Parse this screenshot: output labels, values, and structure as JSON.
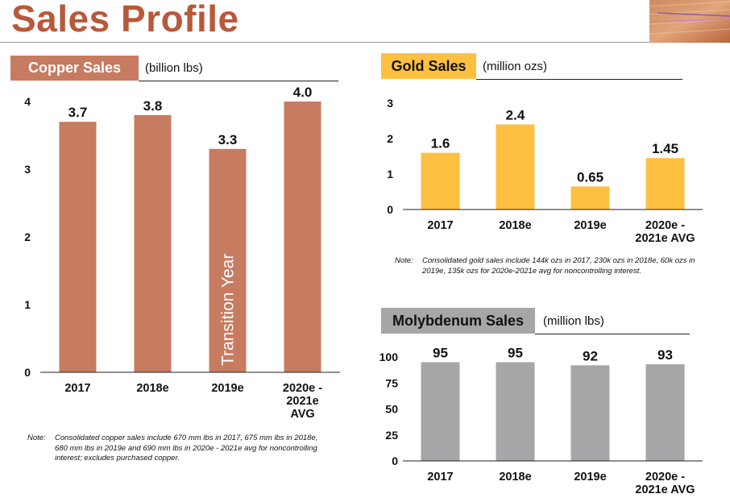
{
  "page": {
    "title": "Sales Profile"
  },
  "colors": {
    "copper": "#c77b60",
    "gold": "#fec040",
    "moly": "#a6a6a8",
    "title": "#b8593a"
  },
  "copper": {
    "header": "Copper Sales",
    "unit": "(billion lbs)",
    "note_label": "Note:",
    "note_text": "Consolidated copper sales include 670 mm lbs in 2017, 675 mm lbs in 2018e, 680 mm lbs in 2019e and 690 mm lbs in 2020e - 2021e avg for noncontrolling interest; excludes purchased copper."
  },
  "gold": {
    "header": "Gold Sales",
    "unit": "(million ozs)",
    "note_label": "Note:",
    "note_text": "Consolidated gold sales include 144k ozs in 2017, 230k ozs in 2018e, 60k ozs in 2019e, 135k ozs for 2020e-2021e avg for noncontrolling interest."
  },
  "moly": {
    "header": "Molybdenum Sales",
    "unit": "(million lbs)"
  },
  "chart_data": [
    {
      "type": "bar",
      "title": "Copper Sales",
      "ylabel": "(billion lbs)",
      "categories": [
        "2017",
        "2018e",
        "2019e",
        "2020e - 2021e AVG"
      ],
      "values": [
        3.7,
        3.8,
        3.3,
        4.0
      ],
      "value_labels": [
        "3.7",
        "3.8",
        "3.3",
        "4.0"
      ],
      "yticks": [
        0,
        1,
        2,
        3,
        4
      ],
      "ylim": [
        0,
        4
      ],
      "annotation": "Transition Year",
      "annotation_bar": 2
    },
    {
      "type": "bar",
      "title": "Gold Sales",
      "ylabel": "(million ozs)",
      "categories": [
        "2017",
        "2018e",
        "2019e",
        "2020e - 2021e AVG"
      ],
      "values": [
        1.6,
        2.4,
        0.65,
        1.45
      ],
      "value_labels": [
        "1.6",
        "2.4",
        "0.65",
        "1.45"
      ],
      "yticks": [
        0,
        1,
        2,
        3
      ],
      "ylim": [
        0,
        3
      ]
    },
    {
      "type": "bar",
      "title": "Molybdenum Sales",
      "ylabel": "(million lbs)",
      "categories": [
        "2017",
        "2018e",
        "2019e",
        "2020e - 2021e AVG"
      ],
      "values": [
        95,
        95,
        92,
        93
      ],
      "value_labels": [
        "95",
        "95",
        "92",
        "93"
      ],
      "yticks": [
        0,
        25,
        50,
        75,
        100
      ],
      "ylim": [
        0,
        100
      ]
    }
  ]
}
